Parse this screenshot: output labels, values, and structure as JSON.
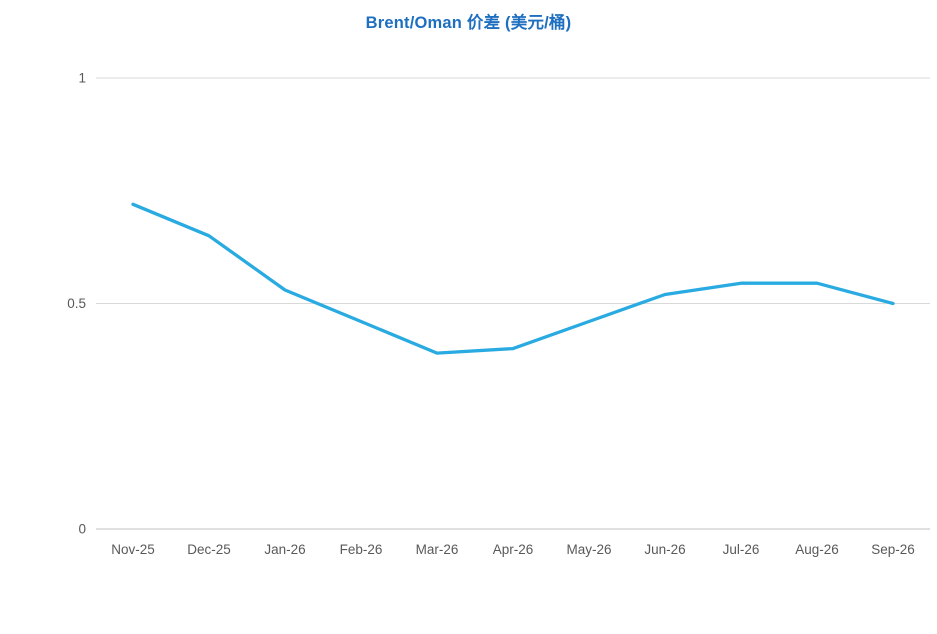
{
  "chart_data": {
    "type": "line",
    "title": "Brent/Oman 价差 (美元/桶)",
    "categories": [
      "Nov-25",
      "Dec-25",
      "Jan-26",
      "Feb-26",
      "Mar-26",
      "Apr-26",
      "May-26",
      "Jun-26",
      "Jul-26",
      "Aug-26",
      "Sep-26"
    ],
    "values": [
      0.72,
      0.65,
      0.53,
      0.46,
      0.39,
      0.4,
      0.46,
      0.52,
      0.545,
      0.545,
      0.5
    ],
    "xlabel": "",
    "ylabel": "",
    "ylim": [
      0,
      1
    ],
    "y_ticks": [
      0,
      0.5,
      1
    ],
    "y_tick_labels": [
      "0",
      "0.5",
      "1"
    ],
    "grid": true,
    "legend": false,
    "colors": {
      "line": "#29ABE2",
      "title": "#1F6FC0",
      "tick_label": "#595959",
      "gridline": "#D9D9D9",
      "axis_line": "#C0C0C0"
    }
  }
}
